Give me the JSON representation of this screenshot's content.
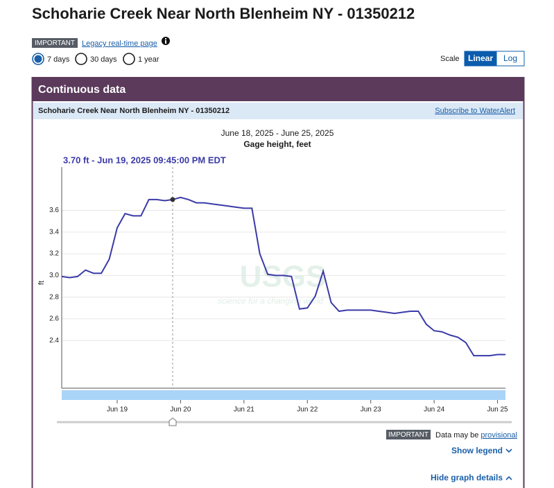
{
  "header": {
    "title": "Schoharie Creek Near North Blenheim NY - 01350212",
    "badge": "IMPORTANT",
    "legacy_link": "Legacy real-time page"
  },
  "period_options": [
    "7 days",
    "30 days",
    "1 year"
  ],
  "selected_period": 0,
  "scale": {
    "label": "Scale",
    "options": [
      "Linear",
      "Log"
    ],
    "selected": 0
  },
  "panel": {
    "title": "Continuous data",
    "site": "Schoharie Creek Near North Blenheim NY - 01350212",
    "subscribe_link": "Subscribe to WaterAlert"
  },
  "chart_data": {
    "type": "line",
    "date_range": "June 18, 2025 - June 25, 2025",
    "title": "Gage height, feet",
    "tooltip": "3.70 ft - Jun 19, 2025 09:45:00 PM EDT",
    "highlight_index": 14,
    "ylabel": "ft",
    "watermark": "USGS",
    "watermark_tagline": "science for a changing world",
    "categories": [
      null,
      null,
      null,
      null,
      null,
      null,
      null,
      "Jun 19",
      null,
      null,
      null,
      null,
      null,
      null,
      null,
      "Jun 20",
      null,
      null,
      null,
      null,
      null,
      null,
      null,
      "Jun 21",
      null,
      null,
      null,
      null,
      null,
      null,
      null,
      "Jun 22",
      null,
      null,
      null,
      null,
      null,
      null,
      null,
      "Jun 23",
      null,
      null,
      null,
      null,
      null,
      null,
      null,
      "Jun 24",
      null,
      null,
      null,
      null,
      null,
      null,
      null,
      "Jun 25",
      null
    ],
    "series": [
      {
        "color": "#3a3aa8",
        "values": [
          2.99,
          2.98,
          2.99,
          3.05,
          3.02,
          3.02,
          3.15,
          3.44,
          3.57,
          3.55,
          3.55,
          3.7,
          3.7,
          3.69,
          3.7,
          3.72,
          3.7,
          3.67,
          3.67,
          3.66,
          3.65,
          3.64,
          3.63,
          3.62,
          3.62,
          3.2,
          3.01,
          3.0,
          3.0,
          2.99,
          2.69,
          2.7,
          2.81,
          3.04,
          2.75,
          2.67,
          2.68,
          2.68,
          2.68,
          2.68,
          2.67,
          2.66,
          2.65,
          2.66,
          2.67,
          2.67,
          2.55,
          2.49,
          2.48,
          2.45,
          2.43,
          2.38,
          2.26,
          2.26,
          2.26,
          2.27,
          2.27
        ]
      }
    ],
    "ylim": [
      1.96,
      4.0
    ],
    "yticks": [
      2.4,
      2.6,
      2.8,
      {
        "value": 3,
        "label": "3.0"
      },
      3.2,
      3.4,
      3.6
    ],
    "grid": true
  },
  "footer": {
    "badge": "IMPORTANT",
    "provisional_text": "Data may be",
    "provisional_link": "provisional",
    "show_legend": "Show legend",
    "hide_details": "Hide graph details"
  }
}
